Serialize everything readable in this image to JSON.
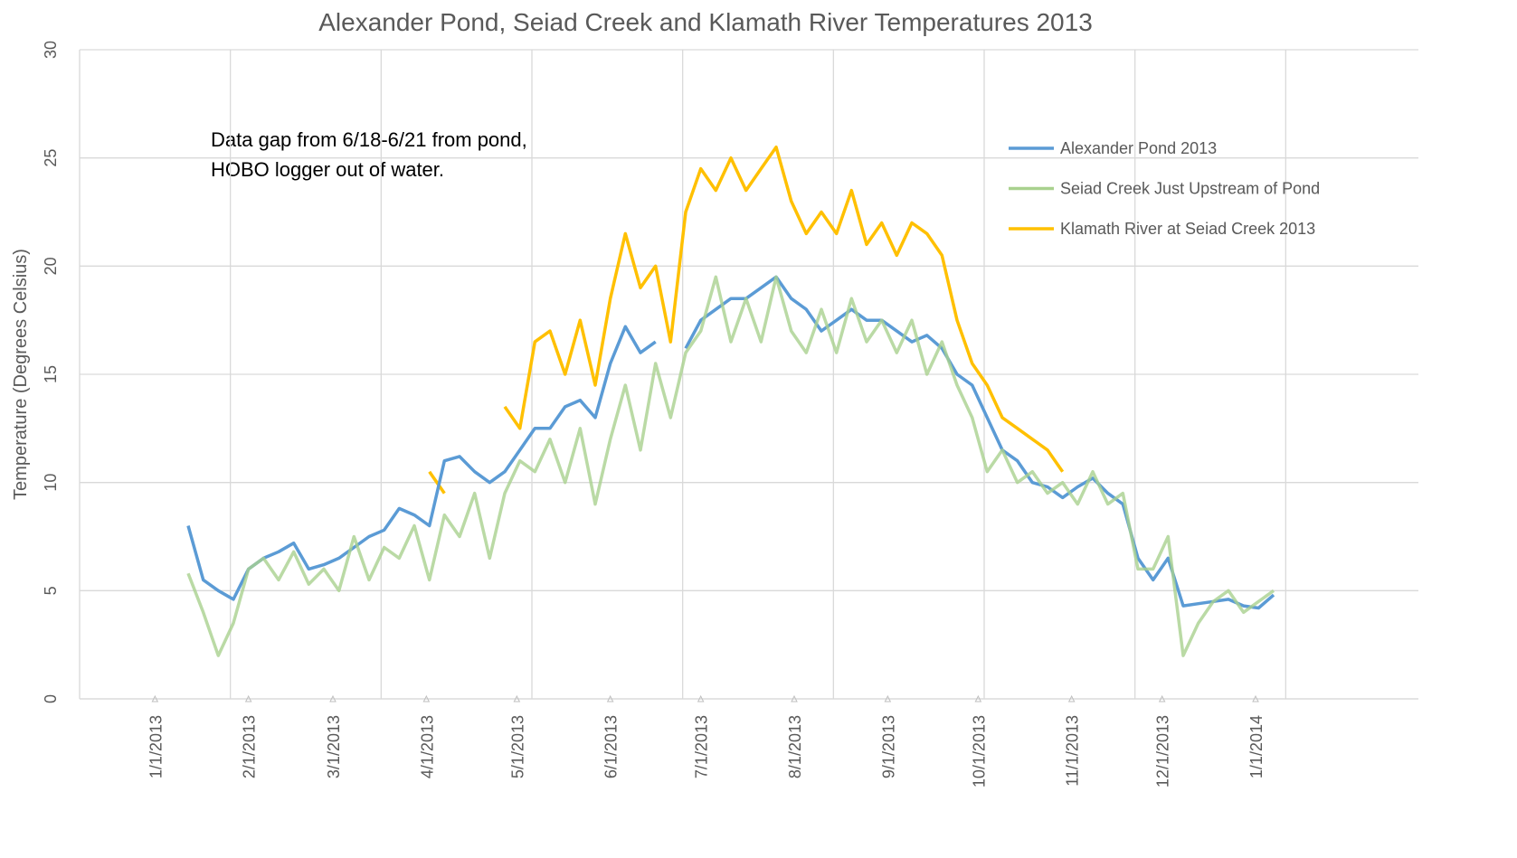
{
  "chart_data": {
    "type": "line",
    "title": "Alexander Pond, Seiad Creek and Klamath River Temperatures 2013",
    "y_label": "Temperature (Degrees Celsius)",
    "annotation": [
      "Data gap from 6/18-6/21 from pond,",
      "HOBO logger out of water."
    ],
    "x": [
      "2013-01-12",
      "2013-01-17",
      "2013-01-22",
      "2013-01-27",
      "2013-02-01",
      "2013-02-06",
      "2013-02-11",
      "2013-02-16",
      "2013-02-21",
      "2013-02-26",
      "2013-03-03",
      "2013-03-08",
      "2013-03-13",
      "2013-03-18",
      "2013-03-23",
      "2013-03-28",
      "2013-04-02",
      "2013-04-07",
      "2013-04-12",
      "2013-04-17",
      "2013-04-22",
      "2013-04-27",
      "2013-05-02",
      "2013-05-07",
      "2013-05-12",
      "2013-05-17",
      "2013-05-22",
      "2013-05-27",
      "2013-06-01",
      "2013-06-06",
      "2013-06-11",
      "2013-06-16",
      "2013-06-21",
      "2013-06-26",
      "2013-07-01",
      "2013-07-06",
      "2013-07-11",
      "2013-07-16",
      "2013-07-21",
      "2013-07-26",
      "2013-07-31",
      "2013-08-05",
      "2013-08-10",
      "2013-08-15",
      "2013-08-20",
      "2013-08-25",
      "2013-08-30",
      "2013-09-04",
      "2013-09-09",
      "2013-09-14",
      "2013-09-19",
      "2013-09-24",
      "2013-09-29",
      "2013-10-04",
      "2013-10-09",
      "2013-10-14",
      "2013-10-19",
      "2013-10-24",
      "2013-10-29",
      "2013-11-03",
      "2013-11-08",
      "2013-11-13",
      "2013-11-18",
      "2013-11-23",
      "2013-11-28",
      "2013-12-03",
      "2013-12-08",
      "2013-12-13",
      "2013-12-18",
      "2013-12-23",
      "2013-12-28",
      "2014-01-02",
      "2014-01-07"
    ],
    "series": [
      {
        "name": "Klamath River at Seiad Creek 2013",
        "color": "#ffc000",
        "values": [
          null,
          null,
          null,
          null,
          null,
          null,
          null,
          null,
          null,
          null,
          null,
          null,
          null,
          null,
          null,
          null,
          10.5,
          9.5,
          null,
          null,
          null,
          13.5,
          12.5,
          16.5,
          17.0,
          15.0,
          17.5,
          14.5,
          18.5,
          21.5,
          19.0,
          20.0,
          16.5,
          22.5,
          24.5,
          23.5,
          25.0,
          23.5,
          24.5,
          25.5,
          23.0,
          21.5,
          22.5,
          21.5,
          23.5,
          21.0,
          22.0,
          20.5,
          22.0,
          21.5,
          20.5,
          17.5,
          15.5,
          14.5,
          13.0,
          12.5,
          12.0,
          11.5,
          10.5,
          null,
          null,
          null,
          null,
          null,
          null,
          null,
          null,
          null,
          null,
          null,
          null,
          null,
          null
        ]
      },
      {
        "name": "Alexander Pond 2013",
        "color": "#5b9bd5",
        "values": [
          8.0,
          5.5,
          5.0,
          4.6,
          6.0,
          6.5,
          6.8,
          7.2,
          6.0,
          6.2,
          6.5,
          7.0,
          7.5,
          7.8,
          8.8,
          8.5,
          8.0,
          11.0,
          11.2,
          10.5,
          10.0,
          10.5,
          11.5,
          12.5,
          12.5,
          13.5,
          13.8,
          13.0,
          15.5,
          17.2,
          16.0,
          16.5,
          null,
          16.2,
          17.5,
          18.0,
          18.5,
          18.5,
          19.0,
          19.5,
          18.5,
          18.0,
          17.0,
          17.5,
          18.0,
          17.5,
          17.5,
          17.0,
          16.5,
          16.8,
          16.2,
          15.0,
          14.5,
          13.0,
          11.5,
          11.0,
          10.0,
          9.8,
          9.3,
          9.8,
          10.2,
          9.5,
          9.0,
          6.5,
          5.5,
          6.5,
          4.3,
          4.4,
          4.5,
          4.6,
          4.3,
          4.2,
          4.8
        ]
      },
      {
        "name": "Seiad Creek Just Upstream of Pond",
        "color": "#a9d18e",
        "values": [
          5.8,
          4.0,
          2.0,
          3.5,
          6.0,
          6.5,
          5.5,
          6.8,
          5.3,
          6.0,
          5.0,
          7.5,
          5.5,
          7.0,
          6.5,
          8.0,
          5.5,
          8.5,
          7.5,
          9.5,
          6.5,
          9.5,
          11.0,
          10.5,
          12.0,
          10.0,
          12.5,
          9.0,
          12.0,
          14.5,
          11.5,
          15.5,
          13.0,
          16.0,
          17.0,
          19.5,
          16.5,
          18.5,
          16.5,
          19.5,
          17.0,
          16.0,
          18.0,
          16.0,
          18.5,
          16.5,
          17.5,
          16.0,
          17.5,
          15.0,
          16.5,
          14.5,
          13.0,
          10.5,
          11.5,
          10.0,
          10.5,
          9.5,
          10.0,
          9.0,
          10.5,
          9.0,
          9.5,
          6.0,
          6.0,
          7.5,
          2.0,
          3.5,
          4.5,
          5.0,
          4.0,
          4.5,
          5.0
        ]
      }
    ],
    "legend_order": [
      1,
      2,
      0
    ],
    "xlim": [
      "2012-12-07",
      "2014-02-24"
    ],
    "xticks": [
      {
        "value": "2013-01-01",
        "label": "1/1/2013"
      },
      {
        "value": "2013-02-01",
        "label": "2/1/2013"
      },
      {
        "value": "2013-03-01",
        "label": "3/1/2013"
      },
      {
        "value": "2013-04-01",
        "label": "4/1/2013"
      },
      {
        "value": "2013-05-01",
        "label": "5/1/2013"
      },
      {
        "value": "2013-06-01",
        "label": "6/1/2013"
      },
      {
        "value": "2013-07-01",
        "label": "7/1/2013"
      },
      {
        "value": "2013-08-01",
        "label": "8/1/2013"
      },
      {
        "value": "2013-09-01",
        "label": "9/1/2013"
      },
      {
        "value": "2013-10-01",
        "label": "10/1/2013"
      },
      {
        "value": "2013-11-01",
        "label": "11/1/2013"
      },
      {
        "value": "2013-12-01",
        "label": "12/1/2013"
      },
      {
        "value": "2014-01-01",
        "label": "1/1/2014"
      }
    ],
    "x_gridlines": [
      "2012-12-07",
      "2013-01-26",
      "2013-03-17",
      "2013-05-06",
      "2013-06-25",
      "2013-08-14",
      "2013-10-03",
      "2013-11-22",
      "2014-01-11"
    ],
    "ylim": [
      0,
      30
    ],
    "yticks": [
      0,
      5,
      10,
      15,
      20,
      25,
      30
    ],
    "grid": true,
    "legend": "right"
  }
}
